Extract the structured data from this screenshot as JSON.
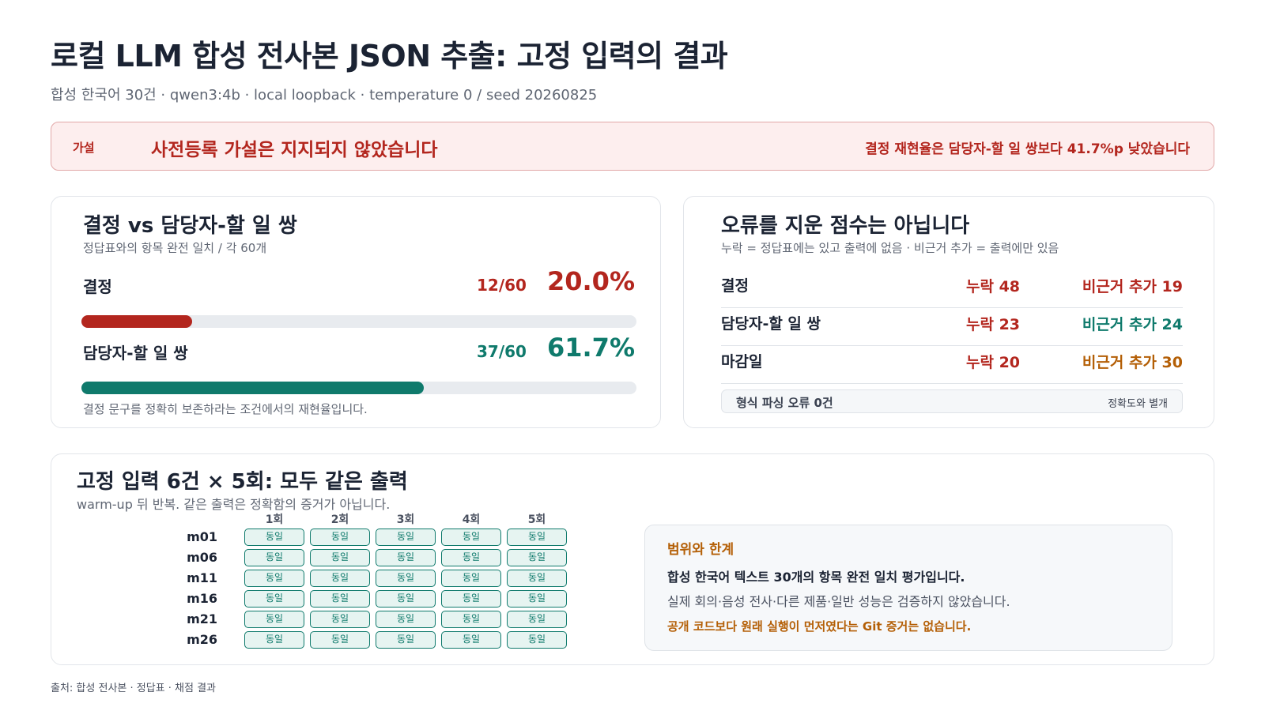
{
  "header": {
    "title": "로컬 LLM 합성 전사본 JSON 추출: 고정 입력의 결과",
    "subtitle": "합성 한국어 30건 · qwen3:4b · local loopback · temperature 0 / seed 20260825"
  },
  "banner": {
    "tag": "가설",
    "headline": "사전등록 가설은 지지되지 않았습니다",
    "detail": "결정 재현율은 담당자-할 일 쌍보다 41.7%p 낮았습니다"
  },
  "recall_card": {
    "title": "결정 vs 담당자-할 일 쌍",
    "caption": "정답표와의 항목 완전 일치 / 각 60개",
    "metrics": [
      {
        "label": "결정",
        "fraction": "12/60",
        "percent": "20.0%",
        "progress": 0.2,
        "color": "#b3261e"
      },
      {
        "label": "담당자-할 일 쌍",
        "fraction": "37/60",
        "percent": "61.7%",
        "progress": 0.617,
        "color": "#0f7a6c"
      }
    ],
    "footnote": "결정 문구를 정확히 보존하라는 조건에서의 재현율입니다."
  },
  "error_card": {
    "title": "오류를 지운 점수는 아닙니다",
    "caption": "누락 = 정답표에는 있고 출력에 없음 · 비근거 추가 = 출력에만 있음",
    "rows": [
      {
        "name": "결정",
        "missing": "누락 48",
        "extra": "비근거 추가 19",
        "extra_color": "#b3261e"
      },
      {
        "name": "담당자-할 일 쌍",
        "missing": "누락 23",
        "extra": "비근거 추가 24",
        "extra_color": "#0f7a6c"
      },
      {
        "name": "마감일",
        "missing": "누락 20",
        "extra": "비근거 추가 30",
        "extra_color": "#b45f06"
      }
    ],
    "parse_errors": "형식 파싱 오류 0건",
    "parse_note": "정확도와 별개"
  },
  "repeat_card": {
    "title": "고정 입력 6건 × 5회: 모두 같은 출력",
    "caption": "warm-up 뒤 반복. 같은 출력은 정확함의 증거가 아닙니다.",
    "columns": [
      "1회",
      "2회",
      "3회",
      "4회",
      "5회"
    ],
    "rows": [
      "m01",
      "m06",
      "m11",
      "m16",
      "m21",
      "m26"
    ],
    "cell_label": "동일"
  },
  "scope": {
    "title": "범위와 한계",
    "line1": "합성 한국어 텍스트 30개의 항목 완전 일치 평가입니다.",
    "line2": "실제 회의·음성 전사·다른 제품·일반 성능은 검증하지 않았습니다.",
    "line3": "공개 코드보다 원래 실행이 먼저였다는 Git 증거는 없습니다."
  },
  "source": "출처: 합성 전사본 · 정답표 · 채점 결과"
}
